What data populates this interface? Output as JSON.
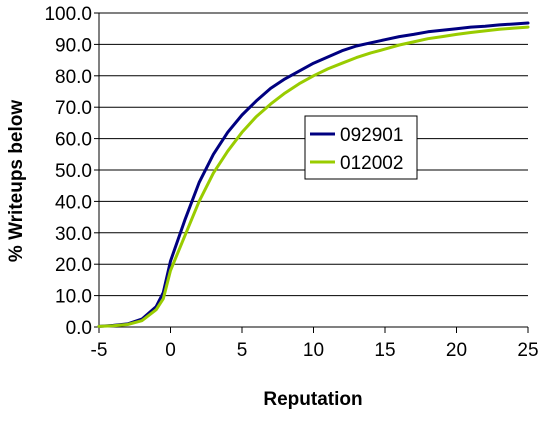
{
  "chart_data": {
    "type": "line",
    "title": "",
    "xlabel": "Reputation",
    "ylabel": "% Writeups below",
    "xlim": [
      -5,
      25
    ],
    "ylim": [
      0,
      100
    ],
    "x_ticks": [
      "-5",
      "0",
      "5",
      "10",
      "15",
      "20",
      "25"
    ],
    "y_ticks": [
      "0.0",
      "10.0",
      "20.0",
      "30.0",
      "40.0",
      "50.0",
      "60.0",
      "70.0",
      "80.0",
      "90.0",
      "100.0"
    ],
    "grid": "horizontal",
    "legend_position": "right-middle",
    "series": [
      {
        "name": "092901",
        "color": "#000080",
        "points": [
          [
            -5,
            0.2
          ],
          [
            -4,
            0.5
          ],
          [
            -3,
            1.0
          ],
          [
            -2,
            2.5
          ],
          [
            -1,
            6.5
          ],
          [
            -0.5,
            11.0
          ],
          [
            0,
            21.0
          ],
          [
            1,
            34.0
          ],
          [
            2,
            46.0
          ],
          [
            3,
            55.0
          ],
          [
            4,
            62.0
          ],
          [
            5,
            67.5
          ],
          [
            6,
            72.0
          ],
          [
            7,
            76.0
          ],
          [
            8,
            79.0
          ],
          [
            9,
            81.5
          ],
          [
            10,
            84.0
          ],
          [
            11,
            86.0
          ],
          [
            12,
            88.0
          ],
          [
            13,
            89.5
          ],
          [
            14,
            90.5
          ],
          [
            15,
            91.5
          ],
          [
            16,
            92.5
          ],
          [
            17,
            93.2
          ],
          [
            18,
            94.0
          ],
          [
            19,
            94.5
          ],
          [
            20,
            95.0
          ],
          [
            21,
            95.5
          ],
          [
            22,
            95.8
          ],
          [
            23,
            96.2
          ],
          [
            24,
            96.5
          ],
          [
            25,
            96.8
          ]
        ]
      },
      {
        "name": "012002",
        "color": "#99cc00",
        "points": [
          [
            -5,
            0.2
          ],
          [
            -4,
            0.4
          ],
          [
            -3,
            0.8
          ],
          [
            -2,
            2.0
          ],
          [
            -1,
            5.5
          ],
          [
            -0.5,
            9.0
          ],
          [
            0,
            18.0
          ],
          [
            1,
            29.0
          ],
          [
            2,
            40.0
          ],
          [
            3,
            49.0
          ],
          [
            4,
            56.0
          ],
          [
            5,
            62.0
          ],
          [
            6,
            67.0
          ],
          [
            7,
            71.0
          ],
          [
            8,
            74.5
          ],
          [
            9,
            77.5
          ],
          [
            10,
            80.0
          ],
          [
            11,
            82.2
          ],
          [
            12,
            84.0
          ],
          [
            13,
            85.8
          ],
          [
            14,
            87.3
          ],
          [
            15,
            88.5
          ],
          [
            16,
            89.8
          ],
          [
            17,
            90.8
          ],
          [
            18,
            91.8
          ],
          [
            19,
            92.5
          ],
          [
            20,
            93.2
          ],
          [
            21,
            93.8
          ],
          [
            22,
            94.3
          ],
          [
            23,
            94.8
          ],
          [
            24,
            95.2
          ],
          [
            25,
            95.5
          ]
        ]
      }
    ]
  }
}
